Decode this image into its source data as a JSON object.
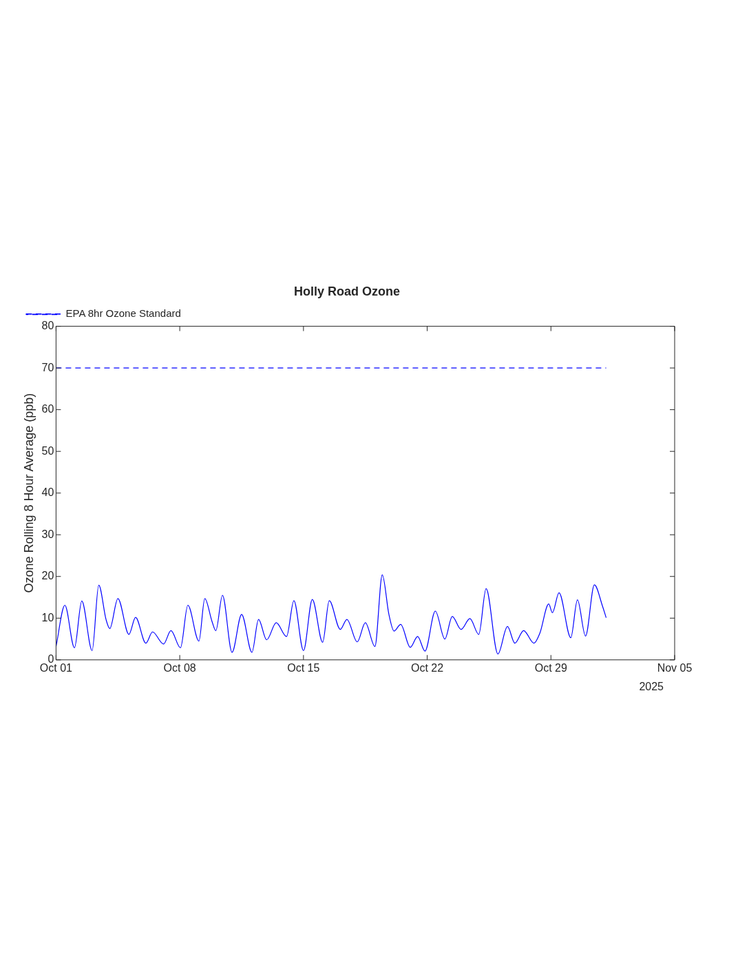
{
  "chart_data": {
    "type": "line",
    "title": "Holly Road Ozone",
    "ylabel": "Ozone Rolling 8 Hour Average (ppb)",
    "xlim": [
      "2025-10-01",
      "2025-11-05"
    ],
    "xticks": [
      {
        "value": "2025-10-01",
        "label": "Oct 01"
      },
      {
        "value": "2025-10-08",
        "label": "Oct 08"
      },
      {
        "value": "2025-10-15",
        "label": "Oct 15"
      },
      {
        "value": "2025-10-22",
        "label": "Oct 22"
      },
      {
        "value": "2025-10-29",
        "label": "Oct 29"
      },
      {
        "value": "2025-11-05",
        "label": "Nov 05"
      }
    ],
    "ylim": [
      0,
      80
    ],
    "yticks": [
      0,
      10,
      20,
      30,
      40,
      50,
      60,
      70,
      80
    ],
    "grid": false,
    "legend": "top left",
    "marker": "none",
    "annotations": [
      "2025"
    ],
    "series": [
      {
        "color": "#0000ff",
        "line_style": "solid",
        "x": [
          "2025-10-01T00:00",
          "2025-10-01T12:00",
          "2025-10-02T01:00",
          "2025-10-02T11:00",
          "2025-10-03T01:00",
          "2025-10-03T10:00",
          "2025-10-03T20:00",
          "2025-10-04T01:00",
          "2025-10-04T12:00",
          "2025-10-05T03:00",
          "2025-10-05T12:00",
          "2025-10-06T02:00",
          "2025-10-06T11:00",
          "2025-10-07T02:00",
          "2025-10-07T12:00",
          "2025-10-08T01:00",
          "2025-10-08T11:00",
          "2025-10-09T02:00",
          "2025-10-09T10:00",
          "2025-10-09T20:00",
          "2025-10-10T01:00",
          "2025-10-10T10:00",
          "2025-10-10T23:00",
          "2025-10-11T12:00",
          "2025-10-12T02:00",
          "2025-10-12T11:00",
          "2025-10-12T22:00",
          "2025-10-13T11:00",
          "2025-10-14T01:00",
          "2025-10-14T11:00",
          "2025-10-15T00:00",
          "2025-10-15T12:00",
          "2025-10-16T02:00",
          "2025-10-16T11:00",
          "2025-10-17T02:00",
          "2025-10-17T11:00",
          "2025-10-18T01:00",
          "2025-10-18T12:00",
          "2025-10-19T01:00",
          "2025-10-19T11:00",
          "2025-10-19T20:00",
          "2025-10-20T03:00",
          "2025-10-20T12:00",
          "2025-10-21T01:00",
          "2025-10-21T11:00",
          "2025-10-21T21:00",
          "2025-10-22T11:00",
          "2025-10-23T00:00",
          "2025-10-23T10:00",
          "2025-10-23T22:00",
          "2025-10-24T10:00",
          "2025-10-24T22:00",
          "2025-10-25T08:00",
          "2025-10-26T00:00",
          "2025-10-26T13:00",
          "2025-10-26T23:00",
          "2025-10-27T11:00",
          "2025-10-28T01:00",
          "2025-10-28T09:00",
          "2025-10-28T21:00",
          "2025-10-29T02:00",
          "2025-10-29T11:00",
          "2025-10-30T03:00",
          "2025-10-30T12:00",
          "2025-10-30T23:00",
          "2025-10-31T11:00",
          "2025-10-31T22:00",
          "2025-11-01T03:00"
        ],
        "values": [
          3.2,
          13.1,
          2.9,
          14.1,
          2.2,
          17.9,
          9.6,
          7.5,
          14.7,
          6.1,
          10.2,
          4.0,
          6.7,
          3.8,
          7.0,
          2.9,
          13.1,
          4.5,
          14.7,
          9.1,
          7.0,
          15.5,
          1.8,
          10.9,
          1.8,
          9.7,
          4.8,
          8.9,
          5.6,
          14.2,
          2.2,
          14.5,
          4.2,
          14.2,
          7.3,
          9.7,
          4.3,
          8.9,
          3.2,
          20.4,
          10.9,
          6.9,
          8.5,
          3.0,
          5.6,
          2.1,
          11.7,
          5.0,
          10.4,
          7.3,
          9.9,
          6.1,
          17.1,
          1.4,
          8.0,
          4.0,
          7.0,
          4.0,
          6.4,
          13.4,
          11.3,
          16.1,
          5.3,
          14.4,
          5.7,
          18.0,
          12.9,
          10.1
        ]
      },
      {
        "name": "EPA 8hr Ozone Standard",
        "color": "#0000ff",
        "line_style": "dashed",
        "x": [
          "2025-10-01T00:00",
          "2025-11-01T03:00"
        ],
        "values": [
          70,
          70
        ]
      }
    ]
  }
}
